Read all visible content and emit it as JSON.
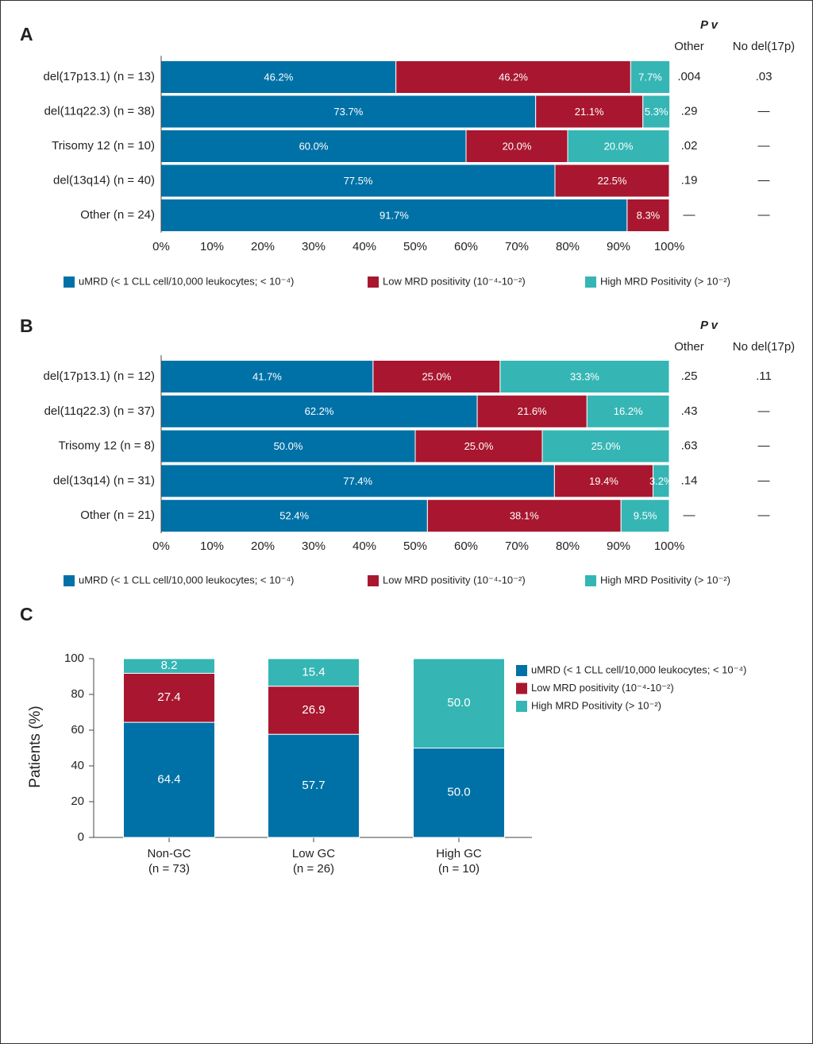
{
  "chart_data": [
    {
      "type": "bar",
      "orientation": "horizontal",
      "stacked": true,
      "title": "A",
      "categories": [
        "del(17p13.1) (n = 13)",
        "del(11q22.3) (n = 38)",
        "Trisomy 12 (n = 10)",
        "del(13q14) (n = 40)",
        "Other (n = 24)"
      ],
      "series": [
        {
          "name": "uMRD (< 1 CLL cell/10,000 leukocytes; < 10⁻⁴)",
          "color": "#0071a6",
          "values": [
            46.2,
            73.7,
            60.0,
            77.5,
            91.7
          ],
          "value_labels": [
            "46.2%",
            "73.7%",
            "60.0%",
            "77.5%",
            "91.7%"
          ]
        },
        {
          "name": "Low MRD positivity (10⁻⁴-10⁻²)",
          "color": "#a8172f",
          "values": [
            46.2,
            21.1,
            20.0,
            22.5,
            8.3
          ],
          "value_labels": [
            "46.2%",
            "21.1%",
            "20.0%",
            "22.5%",
            "8.3%"
          ]
        },
        {
          "name": "High MRD Positivity (> 10⁻²)",
          "color": "#35b6b4",
          "values": [
            7.7,
            5.3,
            20.0,
            null,
            null
          ],
          "value_labels": [
            "7.7%",
            "5.3%",
            "20.0%",
            null,
            null
          ]
        }
      ],
      "xlim": [
        0,
        100
      ],
      "xticks": [
        {
          "value": 0,
          "label": "0%"
        },
        {
          "value": 10,
          "label": "10%"
        },
        {
          "value": 20,
          "label": "20%"
        },
        {
          "value": 30,
          "label": "30%"
        },
        {
          "value": 40,
          "label": "40%"
        },
        {
          "value": 50,
          "label": "50%"
        },
        {
          "value": 60,
          "label": "60%"
        },
        {
          "value": 70,
          "label": "70%"
        },
        {
          "value": 80,
          "label": "80%"
        },
        {
          "value": 90,
          "label": "90%"
        },
        {
          "value": 100,
          "label": "100%"
        }
      ],
      "p_values": {
        "title": "P v",
        "columns": [
          "Other",
          "No del(17p)"
        ],
        "rows": [
          [
            ".004",
            ".03"
          ],
          [
            ".29",
            "—"
          ],
          [
            ".02",
            "—"
          ],
          [
            ".19",
            "—"
          ],
          [
            "—",
            "—"
          ]
        ]
      }
    },
    {
      "type": "bar",
      "orientation": "horizontal",
      "stacked": true,
      "title": "B",
      "categories": [
        "del(17p13.1) (n = 12)",
        "del(11q22.3) (n = 37)",
        "Trisomy 12 (n = 8)",
        "del(13q14) (n = 31)",
        "Other (n = 21)"
      ],
      "series": [
        {
          "name": "uMRD (< 1 CLL cell/10,000 leukocytes; < 10⁻⁴)",
          "color": "#0071a6",
          "values": [
            41.7,
            62.2,
            50.0,
            77.4,
            52.4
          ],
          "value_labels": [
            "41.7%",
            "62.2%",
            "50.0%",
            "77.4%",
            "52.4%"
          ]
        },
        {
          "name": "Low MRD positivity (10⁻⁴-10⁻²)",
          "color": "#a8172f",
          "values": [
            25.0,
            21.6,
            25.0,
            19.4,
            38.1
          ],
          "value_labels": [
            "25.0%",
            "21.6%",
            "25.0%",
            "19.4%",
            "38.1%"
          ]
        },
        {
          "name": "High MRD Positivity (> 10⁻²)",
          "color": "#35b6b4",
          "values": [
            33.3,
            16.2,
            25.0,
            3.2,
            9.5
          ],
          "value_labels": [
            "33.3%",
            "16.2%",
            "25.0%",
            "3.2%",
            "9.5%"
          ]
        }
      ],
      "xlim": [
        0,
        100
      ],
      "xticks": [
        {
          "value": 0,
          "label": "0%"
        },
        {
          "value": 10,
          "label": "10%"
        },
        {
          "value": 20,
          "label": "20%"
        },
        {
          "value": 30,
          "label": "30%"
        },
        {
          "value": 40,
          "label": "40%"
        },
        {
          "value": 50,
          "label": "50%"
        },
        {
          "value": 60,
          "label": "60%"
        },
        {
          "value": 70,
          "label": "70%"
        },
        {
          "value": 80,
          "label": "80%"
        },
        {
          "value": 90,
          "label": "90%"
        },
        {
          "value": 100,
          "label": "100%"
        }
      ],
      "p_values": {
        "title": "P v",
        "columns": [
          "Other",
          "No del(17p)"
        ],
        "rows": [
          [
            ".25",
            ".11"
          ],
          [
            ".43",
            "—"
          ],
          [
            ".63",
            "—"
          ],
          [
            ".14",
            "—"
          ],
          [
            "—",
            "—"
          ]
        ]
      }
    },
    {
      "type": "column",
      "stacked": true,
      "title": "C",
      "ylabel": "Patients (%)",
      "categories": [
        "Non-GC",
        "Low GC",
        "High GC"
      ],
      "category_notes": [
        "(n = 73)",
        "(n = 26)",
        "(n = 10)"
      ],
      "series": [
        {
          "name": "uMRD (< 1 CLL cell/10,000 leukocytes; < 10⁻⁴)",
          "color": "#0071a6",
          "values": [
            64.4,
            57.7,
            50.0
          ],
          "value_labels": [
            "64.4",
            "57.7",
            "50.0"
          ]
        },
        {
          "name": "Low MRD positivity (10⁻⁴-10⁻²)",
          "color": "#a8172f",
          "values": [
            27.4,
            26.9,
            null
          ],
          "value_labels": [
            "27.4",
            "26.9",
            null
          ]
        },
        {
          "name": "High MRD Positivity (> 10⁻²)",
          "color": "#35b6b4",
          "values": [
            8.2,
            15.4,
            50.0
          ],
          "value_labels": [
            "8.2",
            "15.4",
            "50.0"
          ]
        }
      ],
      "ylim": [
        0,
        100
      ],
      "yticks": [
        0,
        20,
        40,
        60,
        80,
        100
      ]
    }
  ]
}
